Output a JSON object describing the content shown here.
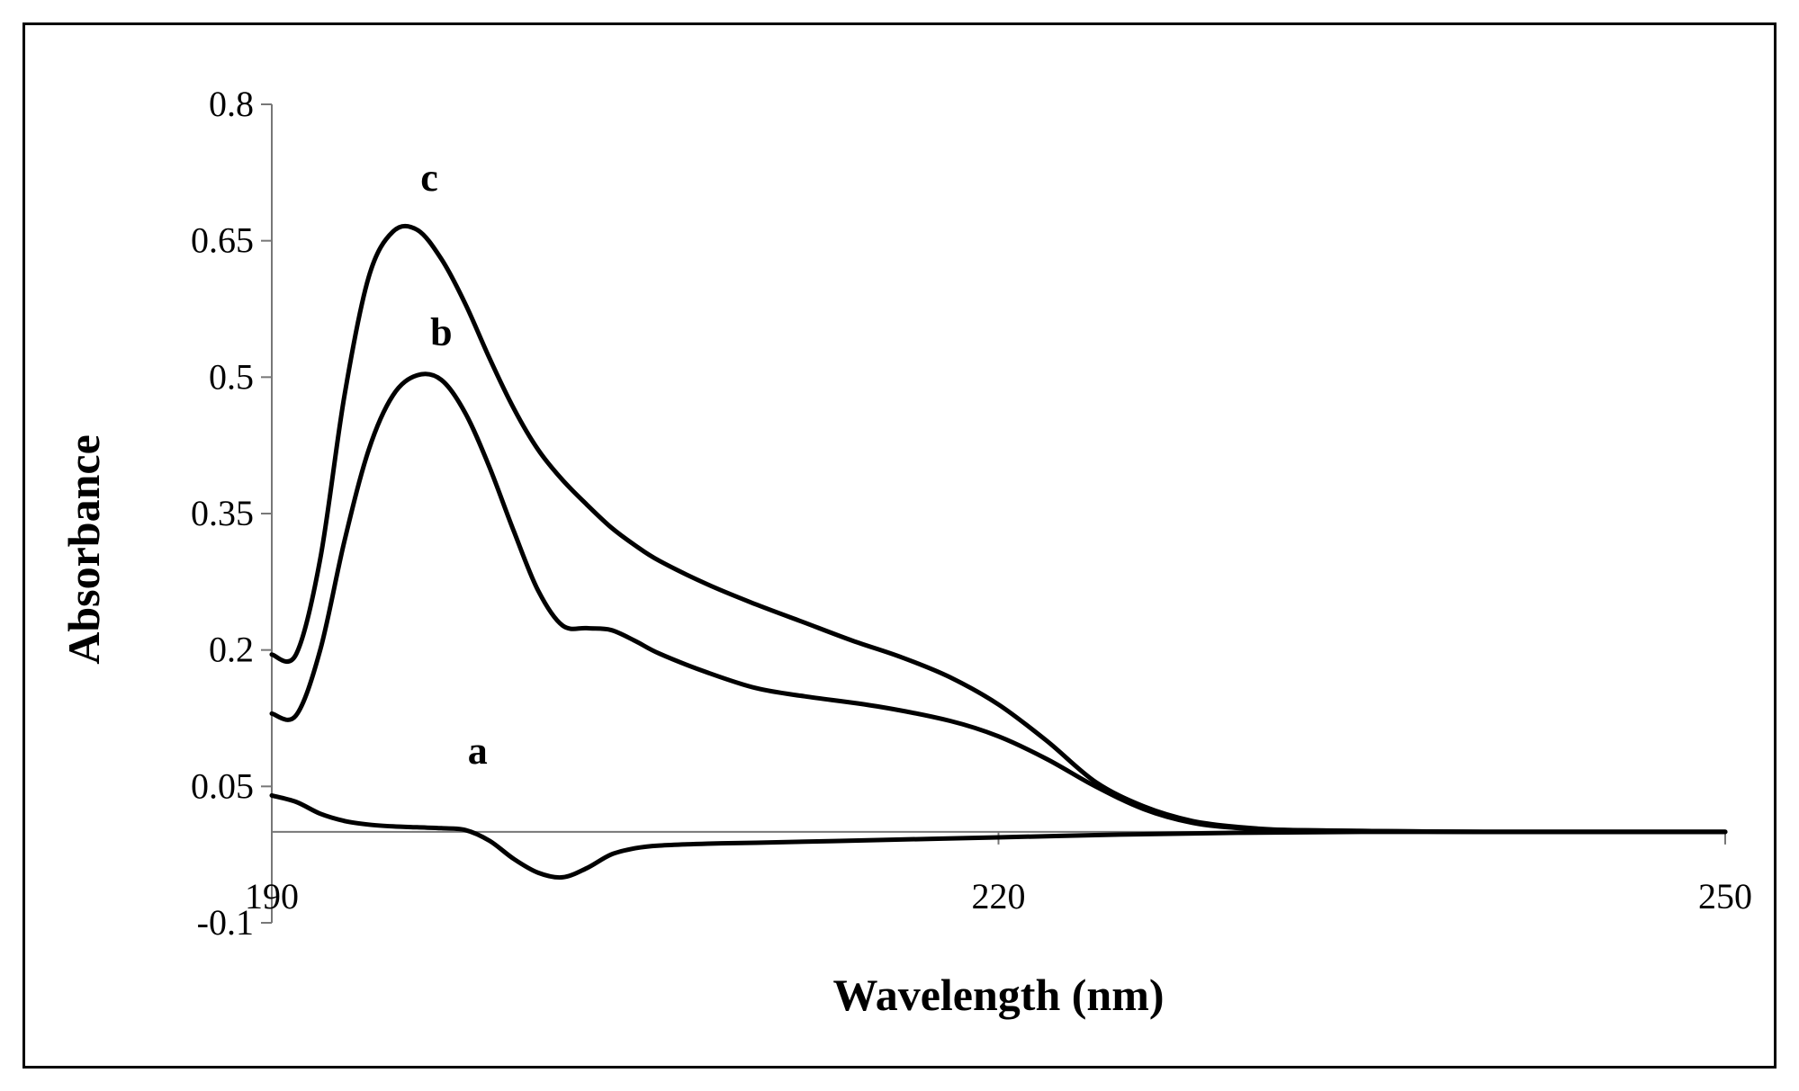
{
  "chart_data": {
    "type": "line",
    "title": "",
    "xlabel": "Wavelength (nm)",
    "ylabel": "Absorbance",
    "xlim": [
      190,
      250
    ],
    "ylim": [
      -0.1,
      0.8
    ],
    "x_ticks": [
      190,
      220,
      250
    ],
    "x_tick_labels": [
      "190",
      "220",
      "250"
    ],
    "y_ticks": [
      -0.1,
      0.05,
      0.2,
      0.35,
      0.5,
      0.65,
      0.8
    ],
    "y_tick_labels": [
      "-0.1",
      "0.05",
      "0.2",
      "0.35",
      "0.5",
      "0.65",
      "0.8"
    ],
    "grid": false,
    "legend": "none",
    "line_color": "#000000",
    "series": [
      {
        "name": "a",
        "x": [
          190,
          191,
          192,
          193,
          194,
          195,
          196,
          197,
          198,
          199,
          200,
          201,
          202,
          203,
          204,
          205,
          206,
          208,
          210,
          215,
          220,
          225,
          230,
          235,
          240,
          245,
          250
        ],
        "y": [
          0.04,
          0.033,
          0.02,
          0.012,
          0.008,
          0.006,
          0.005,
          0.004,
          0.002,
          -0.01,
          -0.03,
          -0.045,
          -0.05,
          -0.04,
          -0.025,
          -0.018,
          -0.015,
          -0.013,
          -0.012,
          -0.009,
          -0.006,
          -0.003,
          -0.001,
          0.0,
          0.0,
          0.0,
          0.0
        ]
      },
      {
        "name": "b",
        "x": [
          190,
          191,
          192,
          193,
          194,
          195,
          196,
          197,
          198,
          199,
          200,
          201,
          202,
          203,
          204,
          205,
          206,
          208,
          210,
          212,
          215,
          218,
          220,
          222,
          224,
          226,
          228,
          230,
          232,
          235,
          240,
          245,
          250
        ],
        "y": [
          0.13,
          0.128,
          0.2,
          0.32,
          0.42,
          0.48,
          0.502,
          0.497,
          0.46,
          0.4,
          0.33,
          0.265,
          0.227,
          0.224,
          0.222,
          0.21,
          0.196,
          0.175,
          0.158,
          0.149,
          0.138,
          0.122,
          0.105,
          0.08,
          0.05,
          0.025,
          0.01,
          0.004,
          0.002,
          0.001,
          0.0,
          0.0,
          0.0
        ]
      },
      {
        "name": "c",
        "x": [
          190,
          191,
          192,
          193,
          194,
          195,
          196,
          197,
          198,
          199,
          200,
          201,
          202,
          203,
          204,
          205,
          206,
          208,
          210,
          212,
          214,
          216,
          218,
          220,
          222,
          224,
          226,
          228,
          230,
          232,
          235,
          240,
          245,
          250
        ],
        "y": [
          0.195,
          0.195,
          0.3,
          0.48,
          0.61,
          0.66,
          0.662,
          0.63,
          0.58,
          0.52,
          0.465,
          0.42,
          0.387,
          0.36,
          0.335,
          0.315,
          0.298,
          0.272,
          0.25,
          0.23,
          0.21,
          0.192,
          0.17,
          0.14,
          0.1,
          0.055,
          0.028,
          0.012,
          0.005,
          0.002,
          0.001,
          0.0,
          0.0,
          0.0
        ]
      }
    ],
    "series_labels": [
      {
        "text": "a",
        "x": 198.5,
        "y": 0.075
      },
      {
        "text": "b",
        "x": 197,
        "y": 0.535
      },
      {
        "text": "c",
        "x": 196.5,
        "y": 0.705
      }
    ]
  }
}
